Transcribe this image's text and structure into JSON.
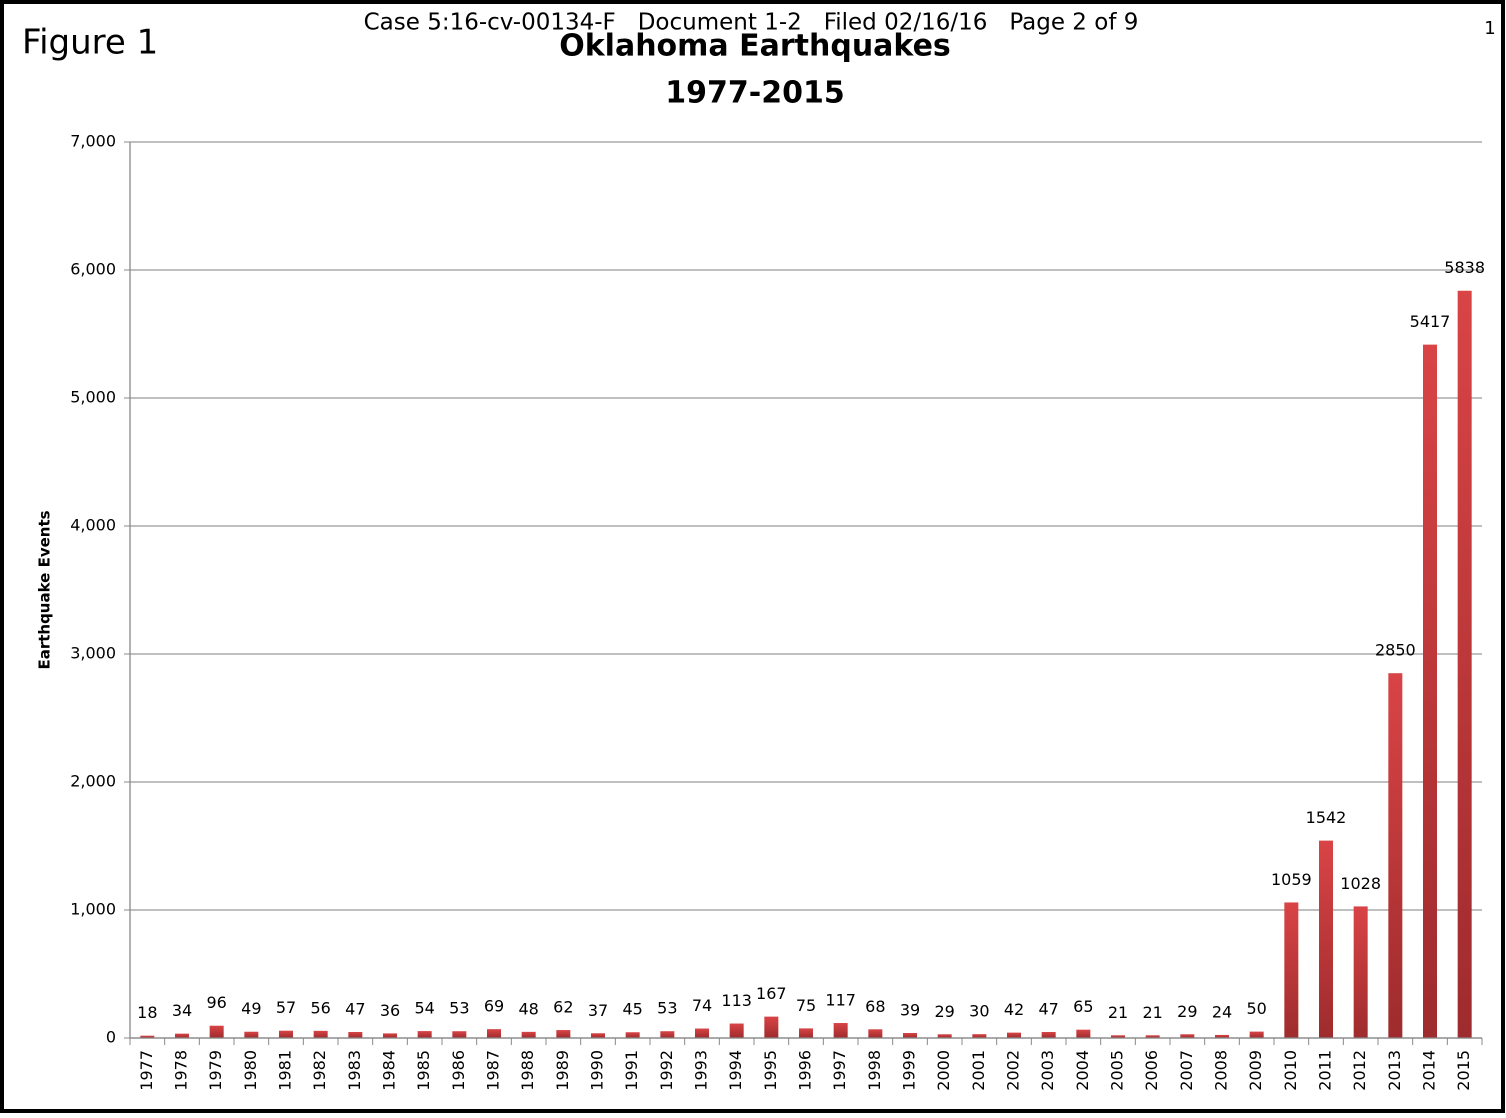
{
  "page": {
    "figure_label": "Figure 1",
    "case_header": "Case 5:16-cv-00134-F   Document 1-2   Filed 02/16/16   Page 2 of 9",
    "page_number": "1"
  },
  "chart_data": {
    "type": "bar",
    "title": "Oklahoma Earthquakes",
    "subtitle": "1977-2015",
    "y_label": "Earthquake Events",
    "categories": [
      "1977",
      "1978",
      "1979",
      "1980",
      "1981",
      "1982",
      "1983",
      "1984",
      "1985",
      "1986",
      "1987",
      "1988",
      "1989",
      "1990",
      "1991",
      "1992",
      "1993",
      "1994",
      "1995",
      "1996",
      "1997",
      "1998",
      "1999",
      "2000",
      "2001",
      "2002",
      "2003",
      "2004",
      "2005",
      "2006",
      "2007",
      "2008",
      "2009",
      "2010",
      "2011",
      "2012",
      "2013",
      "2014",
      "2015"
    ],
    "values": [
      18,
      34,
      96,
      49,
      57,
      56,
      47,
      36,
      54,
      53,
      69,
      48,
      62,
      37,
      45,
      53,
      74,
      113,
      167,
      75,
      117,
      68,
      39,
      29,
      30,
      42,
      47,
      65,
      21,
      21,
      29,
      24,
      50,
      1059,
      1542,
      1028,
      2850,
      5417,
      5838
    ],
    "color": "#c93a3c",
    "ylim": [
      0,
      7000
    ],
    "yticks": [
      0,
      {
        "value": 1000,
        "label": "1,000"
      },
      {
        "value": 2000,
        "label": "2,000"
      },
      {
        "value": 3000,
        "label": "3,000"
      },
      {
        "value": 4000,
        "label": "4,000"
      },
      {
        "value": 5000,
        "label": "5,000"
      },
      {
        "value": 6000,
        "label": "6,000"
      },
      {
        "value": 7000,
        "label": "7,000"
      }
    ],
    "grid": true
  }
}
